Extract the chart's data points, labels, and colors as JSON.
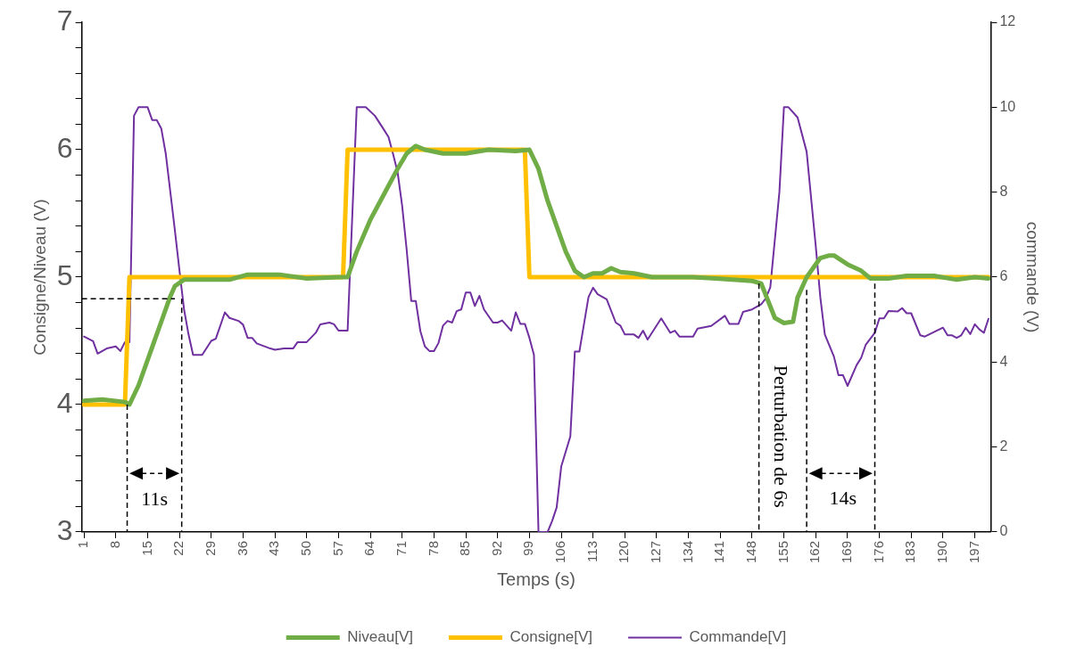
{
  "chart_data": {
    "type": "line",
    "xlabel": "Temps (s)",
    "ylabel": "Consigne/Niveau (V)",
    "y2label": "commande (V)",
    "xlim": [
      0.5,
      200.5
    ],
    "xticks": [
      1,
      8,
      15,
      22,
      29,
      36,
      43,
      50,
      57,
      64,
      71,
      78,
      85,
      92,
      99,
      106,
      113,
      120,
      127,
      134,
      141,
      148,
      155,
      162,
      169,
      176,
      183,
      190,
      197
    ],
    "ylim": [
      3,
      7
    ],
    "yticks": [
      3,
      {
        "value": 3.2,
        "label": null
      },
      {
        "value": 3.4,
        "label": null
      },
      {
        "value": 3.6,
        "label": null
      },
      {
        "value": 3.8,
        "label": null
      },
      4,
      {
        "value": 4.2,
        "label": null
      },
      {
        "value": 4.4,
        "label": null
      },
      {
        "value": 4.6,
        "label": null
      },
      {
        "value": 4.8,
        "label": null
      },
      5,
      {
        "value": 5.2,
        "label": null
      },
      {
        "value": 5.4,
        "label": null
      },
      {
        "value": 5.6,
        "label": null
      },
      {
        "value": 5.8,
        "label": null
      },
      6,
      {
        "value": 6.2,
        "label": null
      },
      {
        "value": 6.4,
        "label": null
      },
      {
        "value": 6.6,
        "label": null
      },
      {
        "value": 6.8,
        "label": null
      },
      7
    ],
    "y2lim": [
      0,
      12
    ],
    "y2ticks": [
      0,
      2,
      4,
      6,
      8,
      10,
      12
    ],
    "legend": "bottom",
    "marker": "none",
    "line_style": "solid",
    "annotations": [
      "11s",
      "Perturbation de 6s",
      "14s"
    ],
    "series": [
      {
        "name": "Niveau[V]",
        "color": "#70ad47",
        "x": [
          1,
          5,
          10,
          11,
          13,
          16,
          18,
          20,
          21,
          23,
          28,
          33,
          37,
          44,
          50,
          57,
          59,
          61,
          64,
          67,
          70,
          72,
          74,
          76,
          80,
          85,
          90,
          96,
          99,
          101,
          103,
          105,
          107,
          109,
          111,
          113,
          115,
          117,
          119,
          122,
          126,
          135,
          140,
          148,
          150,
          153,
          155,
          157,
          158,
          160,
          163,
          165,
          166,
          169,
          172,
          174,
          178,
          182,
          188,
          193,
          197,
          200
        ],
        "values": [
          4.03,
          4.04,
          4.02,
          4.0,
          4.15,
          4.45,
          4.65,
          4.85,
          4.93,
          4.98,
          4.98,
          4.98,
          5.02,
          5.02,
          4.99,
          5.0,
          5.0,
          5.2,
          5.45,
          5.65,
          5.85,
          5.97,
          6.03,
          6.0,
          5.97,
          5.97,
          6.0,
          5.99,
          6.0,
          5.85,
          5.6,
          5.4,
          5.2,
          5.05,
          5.0,
          5.03,
          5.03,
          5.07,
          5.04,
          5.03,
          5.0,
          5.0,
          4.99,
          4.97,
          4.95,
          4.68,
          4.64,
          4.65,
          4.84,
          5.0,
          5.15,
          5.17,
          5.17,
          5.1,
          5.05,
          4.99,
          4.99,
          5.01,
          5.01,
          4.98,
          5.0,
          4.99
        ]
      },
      {
        "name": "Consigne[V]",
        "color": "#ffc000",
        "x": [
          1,
          10,
          11,
          58,
          59,
          98,
          99,
          200
        ],
        "values": [
          4,
          4,
          5,
          5,
          6,
          6,
          5,
          5
        ]
      },
      {
        "name": "Commande[V]",
        "color": "#7030a0",
        "axis": "y2",
        "x": [
          1,
          3,
          4,
          6,
          8,
          9,
          10,
          11,
          12,
          13,
          15,
          16,
          17,
          18,
          19,
          20,
          21,
          22,
          23,
          24,
          25,
          27,
          29,
          30,
          32,
          33,
          35,
          36,
          37,
          38,
          39,
          42,
          43,
          45,
          47,
          48,
          50,
          52,
          53,
          55,
          56,
          57,
          59,
          61,
          63,
          65,
          67,
          68,
          69,
          70,
          71,
          72,
          73,
          74,
          75,
          76,
          77,
          78,
          79,
          80,
          81,
          82,
          83,
          84,
          85,
          86,
          87,
          88,
          89,
          91,
          92,
          93,
          94,
          95,
          96,
          97,
          98,
          99,
          100,
          101,
          103,
          104,
          105,
          106,
          108,
          109,
          110,
          112,
          113,
          114,
          116,
          118,
          119,
          120,
          122,
          123,
          124,
          125,
          128,
          130,
          131,
          132,
          135,
          136,
          139,
          142,
          143,
          145,
          146,
          148,
          150,
          151,
          152,
          154,
          155,
          156,
          158,
          160,
          162,
          163,
          164,
          166,
          167,
          168,
          169,
          171,
          172,
          173,
          175,
          176,
          177,
          178,
          180,
          181,
          182,
          183,
          185,
          186,
          190,
          191,
          192,
          193,
          194,
          195,
          196,
          197,
          198,
          199,
          200
        ],
        "values": [
          4.6,
          4.49,
          4.2,
          4.32,
          4.37,
          4.26,
          4.47,
          4.47,
          9.8,
          10,
          10,
          9.7,
          9.7,
          9.5,
          8.9,
          8.0,
          7.1,
          6.16,
          5.25,
          4.65,
          4.17,
          4.17,
          4.5,
          4.55,
          5.17,
          5.04,
          4.97,
          4.88,
          4.57,
          4.57,
          4.44,
          4.32,
          4.29,
          4.32,
          4.32,
          4.47,
          4.47,
          4.69,
          4.89,
          4.93,
          4.89,
          4.74,
          4.74,
          10,
          10,
          9.8,
          9.47,
          9.3,
          8.9,
          8.47,
          7.68,
          6.64,
          5.44,
          5.44,
          4.73,
          4.37,
          4.26,
          4.26,
          4.45,
          4.86,
          4.97,
          4.93,
          5.2,
          5.24,
          5.64,
          5.64,
          5.32,
          5.56,
          5.24,
          4.93,
          4.93,
          4.98,
          4.86,
          4.74,
          5.17,
          4.9,
          4.9,
          4.57,
          4.17,
          0,
          0,
          0.26,
          0.58,
          1.54,
          2.25,
          4.25,
          4.25,
          5.53,
          5.75,
          5.6,
          5.48,
          4.93,
          4.86,
          4.65,
          4.65,
          4.57,
          4.74,
          4.53,
          5.03,
          4.69,
          4.74,
          4.6,
          4.6,
          4.79,
          4.85,
          5.09,
          4.9,
          4.9,
          5.18,
          5.24,
          5.36,
          5.5,
          5.76,
          8.0,
          10,
          10,
          9.76,
          8.95,
          6.73,
          5.53,
          4.65,
          4.13,
          3.69,
          3.69,
          3.44,
          3.93,
          4.1,
          4.41,
          4.69,
          5.03,
          5.03,
          5.2,
          5.19,
          5.27,
          5.15,
          5.15,
          4.63,
          4.6,
          4.81,
          4.63,
          4.63,
          4.57,
          4.63,
          4.81,
          4.66,
          4.89,
          4.77,
          4.69,
          5.02
        ]
      }
    ]
  }
}
